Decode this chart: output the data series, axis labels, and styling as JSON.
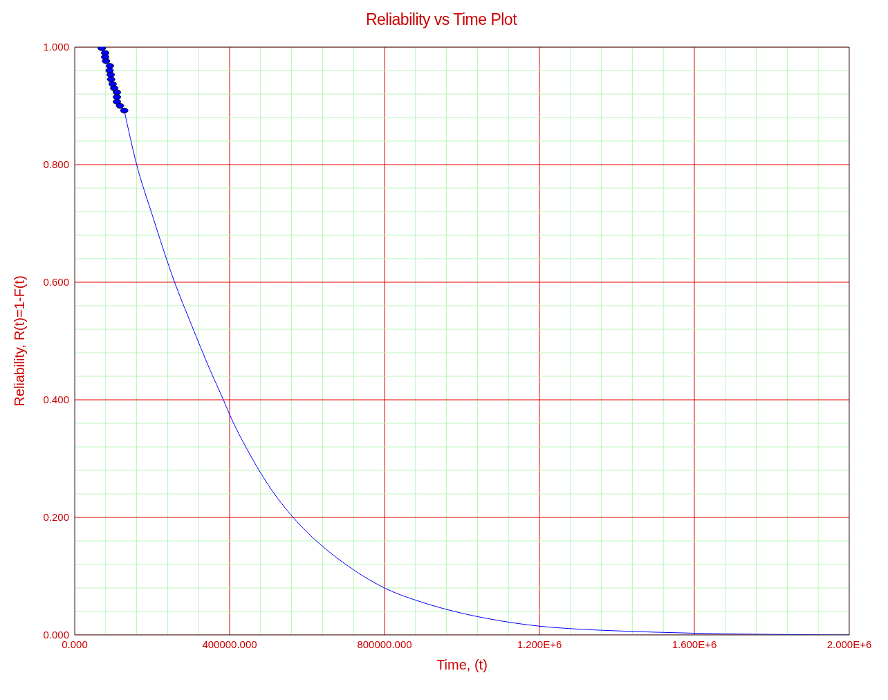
{
  "chart_data": {
    "type": "line",
    "title": "Reliability vs Time Plot",
    "xlabel": "Time, (t)",
    "ylabel": "Reliability, R(t)=1-F(t)",
    "xlim": [
      0,
      2000000
    ],
    "ylim": [
      0,
      1
    ],
    "xticks": [
      {
        "value": 0,
        "label": "0.000"
      },
      {
        "value": 80000,
        "label": null
      },
      {
        "value": 160000,
        "label": null
      },
      {
        "value": 240000,
        "label": null
      },
      {
        "value": 320000,
        "label": null
      },
      {
        "value": 400000,
        "label": "400000.000"
      },
      {
        "value": 480000,
        "label": null
      },
      {
        "value": 560000,
        "label": null
      },
      {
        "value": 640000,
        "label": null
      },
      {
        "value": 720000,
        "label": null
      },
      {
        "value": 800000,
        "label": "800000.000"
      },
      {
        "value": 880000,
        "label": null
      },
      {
        "value": 960000,
        "label": null
      },
      {
        "value": 1040000,
        "label": null
      },
      {
        "value": 1120000,
        "label": null
      },
      {
        "value": 1200000,
        "label": "1.200E+6"
      },
      {
        "value": 1280000,
        "label": null
      },
      {
        "value": 1360000,
        "label": null
      },
      {
        "value": 1440000,
        "label": null
      },
      {
        "value": 1520000,
        "label": null
      },
      {
        "value": 1600000,
        "label": "1.600E+6"
      },
      {
        "value": 1680000,
        "label": null
      },
      {
        "value": 1760000,
        "label": null
      },
      {
        "value": 1840000,
        "label": null
      },
      {
        "value": 1920000,
        "label": null
      },
      {
        "value": 2000000,
        "label": "2.000E+6"
      }
    ],
    "yticks": [
      {
        "value": 0,
        "label": "0.000"
      },
      {
        "value": 0.04,
        "label": null
      },
      {
        "value": 0.08,
        "label": null
      },
      {
        "value": 0.12,
        "label": null
      },
      {
        "value": 0.16,
        "label": null
      },
      {
        "value": 0.2,
        "label": "0.200"
      },
      {
        "value": 0.24,
        "label": null
      },
      {
        "value": 0.28,
        "label": null
      },
      {
        "value": 0.32,
        "label": null
      },
      {
        "value": 0.36,
        "label": null
      },
      {
        "value": 0.4,
        "label": "0.400"
      },
      {
        "value": 0.44,
        "label": null
      },
      {
        "value": 0.48,
        "label": null
      },
      {
        "value": 0.52,
        "label": null
      },
      {
        "value": 0.56,
        "label": null
      },
      {
        "value": 0.6,
        "label": "0.600"
      },
      {
        "value": 0.64,
        "label": null
      },
      {
        "value": 0.68,
        "label": null
      },
      {
        "value": 0.72,
        "label": null
      },
      {
        "value": 0.76,
        "label": null
      },
      {
        "value": 0.8,
        "label": "0.800"
      },
      {
        "value": 0.84,
        "label": null
      },
      {
        "value": 0.88,
        "label": null
      },
      {
        "value": 0.92,
        "label": null
      },
      {
        "value": 0.96,
        "label": null
      },
      {
        "value": 1,
        "label": "1.000"
      }
    ],
    "grid": true,
    "series": [
      {
        "type": "scatter",
        "color": "#0000ff",
        "marker": "circle",
        "x": [
          70000,
          78600,
          78600,
          81000,
          91000,
          90000,
          93000,
          94000,
          98000,
          102000,
          109000,
          109000,
          109000,
          117000,
          128000
        ],
        "values": [
          0.998,
          0.99,
          0.983,
          0.976,
          0.968,
          0.96,
          0.953,
          0.945,
          0.937,
          0.93,
          0.923,
          0.915,
          0.907,
          0.9,
          0.892
        ]
      },
      {
        "type": "line",
        "color": "#0000ff",
        "marker": "none",
        "line_style": "solid",
        "x": [
          128000,
          160000,
          200000,
          258000,
          300000,
          350000,
          384000,
          400000,
          450000,
          500000,
          564000,
          600000,
          700000,
          800000,
          900000,
          1000000,
          1100000,
          1200000,
          1300000,
          1400000,
          1600000,
          1800000,
          2000000
        ],
        "values": [
          0.892,
          0.8,
          0.715,
          0.6,
          0.53,
          0.45,
          0.4,
          0.375,
          0.31,
          0.255,
          0.2,
          0.175,
          0.12,
          0.08,
          0.055,
          0.037,
          0.024,
          0.015,
          0.01,
          0.007,
          0.003,
          0.001,
          0
        ]
      }
    ]
  }
}
